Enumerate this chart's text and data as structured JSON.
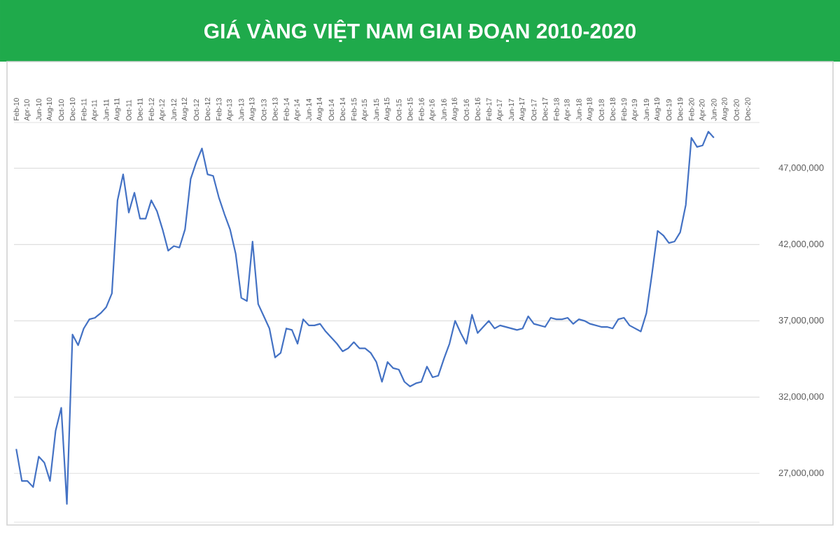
{
  "chart_data": {
    "type": "line",
    "title": "GIÁ VÀNG VIỆT NAM GIAI ĐOẠN 2010-2020",
    "categories": [
      "Feb-10",
      null,
      "Apr-10",
      null,
      "Jun-10",
      null,
      "Aug-10",
      null,
      "Oct-10",
      null,
      "Dec-10",
      null,
      "Feb-11",
      null,
      "Apr-11",
      null,
      "Jun-11",
      null,
      "Aug-11",
      null,
      "Oct-11",
      null,
      "Dec-11",
      null,
      "Feb-12",
      null,
      "Apr-12",
      null,
      "Jun-12",
      null,
      "Aug-12",
      null,
      "Oct-12",
      null,
      "Dec-12",
      null,
      "Feb-13",
      null,
      "Apr-13",
      null,
      "Jun-13",
      null,
      "Aug-13",
      null,
      "Oct-13",
      null,
      "Dec-13",
      null,
      "Feb-14",
      null,
      "Apr-14",
      null,
      "Jun-14",
      null,
      "Aug-14",
      null,
      "Oct-14",
      null,
      "Dec-14",
      null,
      "Feb-15",
      null,
      "Apr-15",
      null,
      "Jun-15",
      null,
      "Aug-15",
      null,
      "Oct-15",
      null,
      "Dec-15",
      null,
      "Feb-16",
      null,
      "Apr-16",
      null,
      "Jun-16",
      null,
      "Aug-16",
      null,
      "Oct-16",
      null,
      "Dec-16",
      null,
      "Feb-17",
      null,
      "Apr-17",
      null,
      "Jun-17",
      null,
      "Aug-17",
      null,
      "Oct-17",
      null,
      "Dec-17",
      null,
      "Feb-18",
      null,
      "Apr-18",
      null,
      "Jun-18",
      null,
      "Aug-18",
      null,
      "Oct-18",
      null,
      "Dec-18",
      null,
      "Feb-19",
      null,
      "Apr-19",
      null,
      "Jun-19",
      null,
      "Aug-19",
      null,
      "Oct-19",
      null,
      "Dec-19",
      null,
      "Feb-20",
      null,
      "Apr-20",
      null,
      "Jun-20",
      null,
      "Aug-20",
      null,
      "Oct-20",
      null,
      "Dec-20"
    ],
    "values": [
      28600000,
      26500000,
      26500000,
      26100000,
      28100000,
      27700000,
      26500000,
      29800000,
      31300000,
      25000000,
      36100000,
      35400000,
      36500000,
      37100000,
      37200000,
      37500000,
      37900000,
      38800000,
      44900000,
      46600000,
      44100000,
      45400000,
      43700000,
      43700000,
      44900000,
      44200000,
      43000000,
      41600000,
      41900000,
      41800000,
      43000000,
      46300000,
      47400000,
      48300000,
      46600000,
      46500000,
      45100000,
      44000000,
      43000000,
      41400000,
      38500000,
      38300000,
      42200000,
      38100000,
      37300000,
      36500000,
      34600000,
      34900000,
      36500000,
      36400000,
      35500000,
      37100000,
      36700000,
      36700000,
      36800000,
      36300000,
      35900000,
      35500000,
      35000000,
      35200000,
      35600000,
      35200000,
      35200000,
      34900000,
      34300000,
      33000000,
      34300000,
      33900000,
      33800000,
      33000000,
      32700000,
      32900000,
      33000000,
      34000000,
      33300000,
      33400000,
      34500000,
      35500000,
      37000000,
      36200000,
      35500000,
      37400000,
      36200000,
      36600000,
      37000000,
      36500000,
      36700000,
      36600000,
      36500000,
      36400000,
      36500000,
      37300000,
      36800000,
      36700000,
      36600000,
      37200000,
      37100000,
      37100000,
      37200000,
      36800000,
      37100000,
      37000000,
      36800000,
      36700000,
      36600000,
      36600000,
      36500000,
      37100000,
      37200000,
      36700000,
      36500000,
      36300000,
      37500000,
      40100000,
      42900000,
      42600000,
      42100000,
      42200000,
      42800000,
      44600000,
      49000000,
      48400000,
      48500000,
      49400000,
      49000000,
      null,
      null,
      null,
      null,
      null,
      null
    ],
    "color": "#4472c4",
    "ylim": [
      23800000,
      50000000
    ],
    "yticks": [
      {
        "value": 27000000,
        "label": "27,000,000"
      },
      {
        "value": 32000000,
        "label": "32,000,000"
      },
      {
        "value": 37000000,
        "label": "37,000,000"
      },
      {
        "value": 42000000,
        "label": "42,000,000"
      },
      {
        "value": 47000000,
        "label": "47,000,000"
      }
    ],
    "grid": "y"
  }
}
